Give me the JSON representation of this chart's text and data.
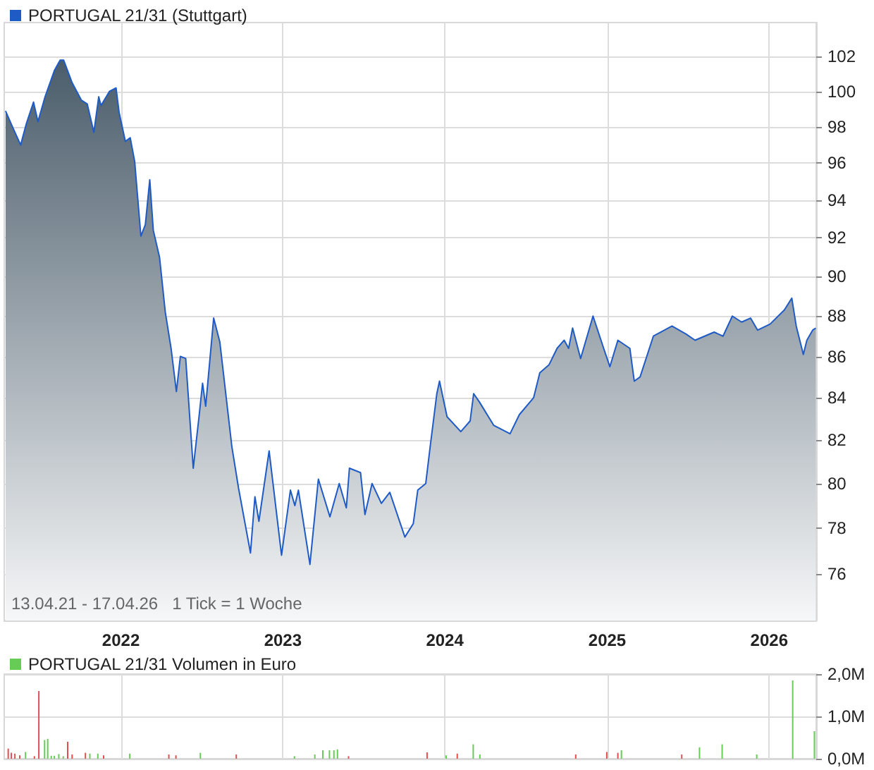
{
  "chart_data": [
    {
      "type": "area",
      "log": true,
      "grid": true,
      "legend": "top left",
      "marker": "none",
      "annotations": [
        "13.04.21 - 17.04.26   1 Tick = 1 Woche"
      ],
      "xlim": [
        "2021-04-13",
        "2026-04-17"
      ],
      "xticks": [
        "2022",
        "2023",
        "2024",
        "2025",
        "2026"
      ],
      "ylim": [
        74,
        104
      ],
      "yticks": [
        76,
        78,
        80,
        82,
        84,
        86,
        88,
        90,
        92,
        94,
        96,
        98,
        100,
        102
      ],
      "series": [
        {
          "name": "PORTUGAL 21/31 (Stuttgart)",
          "color": "#1f5bc6",
          "x": [
            "2021-04-16",
            "2021-04-30",
            "2021-05-20",
            "2021-06-02",
            "2021-06-18",
            "2021-06-28",
            "2021-07-14",
            "2021-08-04",
            "2021-08-17",
            "2021-08-25",
            "2021-09-13",
            "2021-10-04",
            "2021-10-17",
            "2021-11-01",
            "2021-11-12",
            "2021-11-17",
            "2021-12-06",
            "2021-12-21",
            "2021-12-28",
            "2022-01-11",
            "2022-01-22",
            "2022-02-01",
            "2022-02-15",
            "2022-02-25",
            "2022-03-07",
            "2022-03-15",
            "2022-03-29",
            "2022-04-11",
            "2022-04-24",
            "2022-05-06",
            "2022-05-15",
            "2022-05-27",
            "2022-06-13",
            "2022-06-26",
            "2022-07-04",
            "2022-07-11",
            "2022-07-29",
            "2022-08-12",
            "2022-09-08",
            "2022-09-23",
            "2022-10-20",
            "2022-10-30",
            "2022-11-08",
            "2022-12-01",
            "2022-12-29",
            "2023-01-18",
            "2023-01-28",
            "2023-02-05",
            "2023-03-03",
            "2023-03-22",
            "2023-04-17",
            "2023-05-08",
            "2023-05-24",
            "2023-05-31",
            "2023-06-25",
            "2023-07-05",
            "2023-07-21",
            "2023-08-11",
            "2023-08-30",
            "2023-10-03",
            "2023-10-22",
            "2023-11-01",
            "2023-11-19",
            "2023-11-29",
            "2023-12-14",
            "2023-12-20",
            "2024-01-06",
            "2024-02-06",
            "2024-02-27",
            "2024-03-06",
            "2024-03-19",
            "2024-04-20",
            "2024-05-27",
            "2024-06-17",
            "2024-07-19",
            "2024-08-02",
            "2024-08-23",
            "2024-09-10",
            "2024-09-26",
            "2024-10-06",
            "2024-10-15",
            "2024-11-02",
            "2024-11-30",
            "2024-12-24",
            "2025-01-07",
            "2025-01-25",
            "2025-02-21",
            "2025-03-03",
            "2025-03-16",
            "2025-04-15",
            "2025-05-27",
            "2025-06-28",
            "2025-07-18",
            "2025-08-30",
            "2025-09-19",
            "2025-10-10",
            "2025-10-31",
            "2025-11-20",
            "2025-12-06",
            "2026-01-03",
            "2026-02-04",
            "2026-02-21",
            "2026-03-03",
            "2026-03-19",
            "2026-03-27",
            "2026-04-09",
            "2026-04-16"
          ],
          "values": [
            98.9,
            98.1,
            97.0,
            98.2,
            99.4,
            98.3,
            99.7,
            101.2,
            101.8,
            101.8,
            100.5,
            99.5,
            99.3,
            97.7,
            99.7,
            99.2,
            100.0,
            100.2,
            98.8,
            97.2,
            97.4,
            96.1,
            92.1,
            92.7,
            95.1,
            92.4,
            91.0,
            88.2,
            86.4,
            84.3,
            86.0,
            85.9,
            80.7,
            83.1,
            84.7,
            83.6,
            87.9,
            86.7,
            81.7,
            79.8,
            76.9,
            79.4,
            78.3,
            81.5,
            76.8,
            79.7,
            79.0,
            79.7,
            76.4,
            80.2,
            78.5,
            80.0,
            78.9,
            80.7,
            80.5,
            78.6,
            80.0,
            79.1,
            79.6,
            77.6,
            78.2,
            79.7,
            80.0,
            81.7,
            84.2,
            84.8,
            83.1,
            82.4,
            82.9,
            84.2,
            83.8,
            82.7,
            82.3,
            83.2,
            84.0,
            85.2,
            85.6,
            86.4,
            86.8,
            86.4,
            87.4,
            85.9,
            88.0,
            86.4,
            85.5,
            86.8,
            86.4,
            84.8,
            85.0,
            87.0,
            87.5,
            87.1,
            86.8,
            87.2,
            87.0,
            88.0,
            87.7,
            87.9,
            87.3,
            87.6,
            88.3,
            88.9,
            87.5,
            86.1,
            86.8,
            87.3,
            87.4
          ]
        }
      ]
    },
    {
      "type": "bar",
      "grid": true,
      "legend": "top left",
      "tick_labels": "y",
      "xlim": [
        "2021-04-13",
        "2026-04-17"
      ],
      "xticks": [
        {
          "value": "2022",
          "label": null
        },
        {
          "value": "2023",
          "label": null
        },
        {
          "value": "2024",
          "label": null
        },
        {
          "value": "2025",
          "label": null
        },
        {
          "value": "2026",
          "label": null
        }
      ],
      "ylim": [
        0,
        2000000
      ],
      "yticks": [
        {
          "value": 0,
          "label": "0,0M"
        },
        {
          "value": 1000000,
          "label": "1,0M"
        },
        {
          "value": 2000000,
          "label": "2,0M"
        }
      ],
      "series": [
        {
          "name": "PORTUGAL 21/31 Volumen in Euro",
          "color": "#66cc55",
          "x": [
            "2021-04-22",
            "2021-04-29",
            "2021-05-07",
            "2021-05-18",
            "2021-05-31",
            "2021-06-20",
            "2021-06-30",
            "2021-07-13",
            "2021-07-20",
            "2021-07-28",
            "2021-08-04",
            "2021-08-14",
            "2021-08-24",
            "2021-09-03",
            "2021-09-13",
            "2021-10-13",
            "2021-10-23",
            "2021-11-10",
            "2021-11-23",
            "2022-01-21",
            "2022-04-19",
            "2022-05-05",
            "2022-06-29",
            "2022-09-18",
            "2023-01-27",
            "2023-03-14",
            "2023-04-01",
            "2023-04-16",
            "2023-04-26",
            "2023-05-04",
            "2023-05-29",
            "2023-11-22",
            "2024-01-04",
            "2024-01-29",
            "2024-03-05",
            "2024-03-20",
            "2024-10-22",
            "2024-12-31",
            "2025-01-25",
            "2025-02-02",
            "2025-06-18",
            "2025-07-28",
            "2025-09-17",
            "2025-12-04",
            "2026-02-23",
            "2026-04-13"
          ],
          "values": [
            240000,
            140000,
            120000,
            80000,
            160000,
            60000,
            1600000,
            440000,
            470000,
            70000,
            70000,
            110000,
            60000,
            400000,
            100000,
            140000,
            120000,
            120000,
            80000,
            120000,
            100000,
            80000,
            140000,
            100000,
            60000,
            100000,
            200000,
            200000,
            200000,
            220000,
            60000,
            150000,
            80000,
            120000,
            340000,
            100000,
            100000,
            160000,
            140000,
            200000,
            100000,
            270000,
            340000,
            100000,
            1850000,
            650000
          ],
          "colors": [
            "#e05050",
            "#e05050",
            "#e05050",
            "#e05050",
            "#66cc55",
            "#e05050",
            "#e05050",
            "#66cc55",
            "#66cc55",
            "#66cc55",
            "#66cc55",
            "#66cc55",
            "#66cc55",
            "#e05050",
            "#e05050",
            "#e05050",
            "#66cc55",
            "#66cc55",
            "#e05050",
            "#66cc55",
            "#e05050",
            "#e05050",
            "#66cc55",
            "#e05050",
            "#66cc55",
            "#66cc55",
            "#66cc55",
            "#66cc55",
            "#66cc55",
            "#66cc55",
            "#e05050",
            "#e05050",
            "#66cc55",
            "#e05050",
            "#66cc55",
            "#66cc55",
            "#e05050",
            "#e05050",
            "#e05050",
            "#66cc55",
            "#e05050",
            "#66cc55",
            "#66cc55",
            "#66cc55",
            "#66cc55",
            "#66cc55"
          ]
        }
      ]
    }
  ]
}
